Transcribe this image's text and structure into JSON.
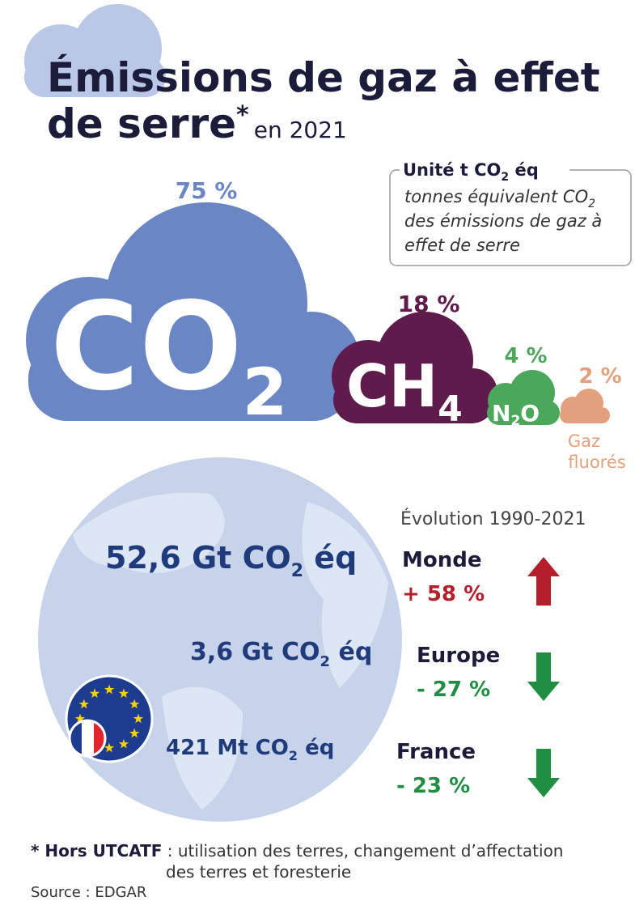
{
  "title": {
    "line1": "Émissions de gaz à effet",
    "line2": "de serre",
    "star": "*",
    "year": "en 2021"
  },
  "unit_box": {
    "heading": "Unité t CO",
    "heading_sub": "2",
    "heading_end": " éq",
    "line1": "tonnes équivalent CO",
    "line1_sub": "2",
    "line2": "des émissions de gaz à",
    "line3": "effet de serre"
  },
  "gases": [
    {
      "formula": "CO",
      "sub": "2",
      "share": "75 %",
      "color": "#6b86c4"
    },
    {
      "formula": "CH",
      "sub": "4",
      "share": "18 %",
      "color": "#5e1b4c"
    },
    {
      "formula": "N",
      "sub": "2",
      "formula_end": "O",
      "share": "4 %",
      "color": "#4ba85a"
    },
    {
      "label1": "Gaz",
      "label2": "fluorés",
      "share": "2 %",
      "color": "#e3a07c"
    }
  ],
  "emissions": [
    {
      "text": "52,6 Gt CO",
      "sub": "2",
      "end": " éq"
    },
    {
      "text": "3,6 Gt CO",
      "sub": "2",
      "end": " éq"
    },
    {
      "text": "421 Mt CO",
      "sub": "2",
      "end": " éq"
    }
  ],
  "evolution": {
    "title": "Évolution 1990-2021",
    "items": [
      {
        "region": "Monde",
        "change": "+ 58 %",
        "direction": "up",
        "color": "#b3202b"
      },
      {
        "region": "Europe",
        "change": "- 27 %",
        "direction": "down",
        "color": "#1f8e43"
      },
      {
        "region": "France",
        "change": "- 23 %",
        "direction": "down",
        "color": "#1f8e43"
      }
    ]
  },
  "footnote": {
    "term": "* Hors UTCATF",
    "line1": " : utilisation des terres, changement d’affectation",
    "line2": "des terres et foresterie"
  },
  "source": "Source : EDGAR"
}
